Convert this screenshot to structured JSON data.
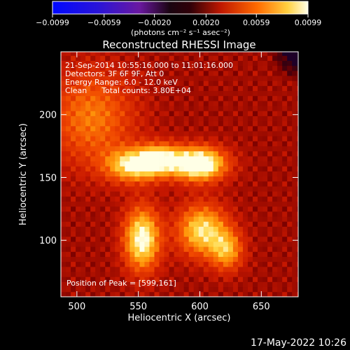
{
  "chart_data": {
    "type": "heatmap",
    "title": "Reconstructed RHESSI Image",
    "xlabel": "Heliocentric X (arcsec)",
    "ylabel": "Heliocentric Y (arcsec)",
    "xlim": [
      487,
      680
    ],
    "ylim": [
      55,
      250
    ],
    "xticks": [
      500,
      550,
      600,
      650
    ],
    "yticks": [
      100,
      150,
      200
    ],
    "colorbar": {
      "colormap": "rhessi-red-temperature",
      "range": [
        -0.0099,
        0.0099
      ],
      "tick_values": [
        -0.0099,
        -0.0059,
        -0.002,
        0.002,
        0.0059,
        0.0099
      ],
      "tick_labels": [
        "−0.0099",
        "−0.0059",
        "−0.0020",
        "0.0020",
        "0.0059",
        "0.0099"
      ],
      "unit_label": "(photons cm⁻² s⁻¹ asec⁻²)"
    },
    "annotations": [
      "21-Sep-2014 10:55:16.000 to 11:01:16.000",
      "Detectors: 3F 6F 9F, Att 0",
      "Energy Range: 6.0 - 12.0 keV",
      "Clean      Total counts: 3.80E+04"
    ],
    "peak_text": "Position of Peak = [599,161]",
    "peak": [
      599,
      161
    ],
    "sources": [
      {
        "x": 547,
        "y": 160,
        "sx": 16,
        "sy": 9,
        "amp": 0.0072
      },
      {
        "x": 568,
        "y": 165,
        "sx": 12,
        "sy": 8,
        "amp": 0.0062
      },
      {
        "x": 599,
        "y": 161,
        "sx": 15,
        "sy": 9,
        "amp": 0.0099
      },
      {
        "x": 553,
        "y": 101,
        "sx": 10,
        "sy": 17,
        "amp": 0.008
      },
      {
        "x": 602,
        "y": 108,
        "sx": 14,
        "sy": 14,
        "amp": 0.0068
      },
      {
        "x": 622,
        "y": 92,
        "sx": 9,
        "sy": 11,
        "amp": 0.005
      },
      {
        "x": 512,
        "y": 198,
        "sx": 24,
        "sy": 26,
        "amp": 0.004
      }
    ],
    "background_level": 0.0032
  },
  "footer": {
    "timestamp": "17-May-2022 10:26"
  }
}
